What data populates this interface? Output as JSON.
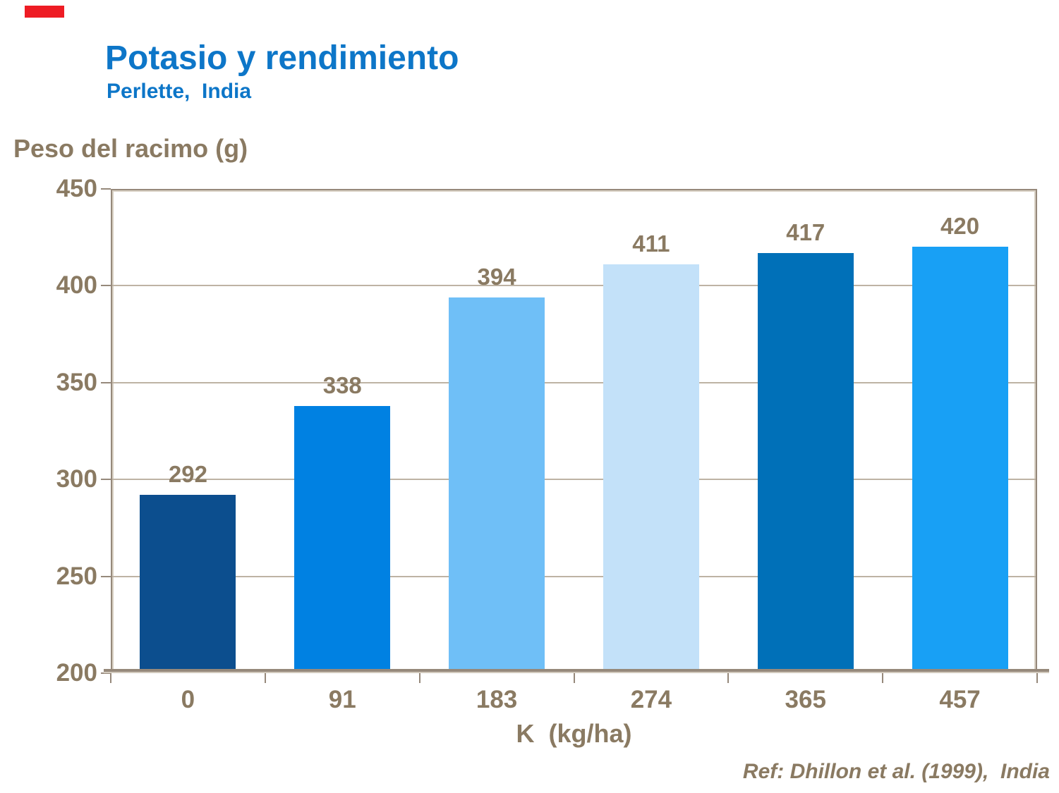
{
  "slide": {
    "title": "Potasio y rendimiento",
    "subtitle": "Perlette,  India",
    "reference": "Ref: Dhillon et al. (1999),  India"
  },
  "chart_data": {
    "type": "bar",
    "title": "Potasio y rendimiento",
    "subtitle": "Perlette, India",
    "categories": [
      "0",
      "91",
      "183",
      "274",
      "365",
      "457"
    ],
    "values": [
      292,
      338,
      394,
      411,
      417,
      420
    ],
    "bar_colors": [
      "#0c4e8e",
      "#0081e2",
      "#6fbff7",
      "#c3e1f9",
      "#0070b8",
      "#18a0f5"
    ],
    "xlabel": "K  (kg/ha)",
    "ylabel": "Peso del racimo (g)",
    "ylim": [
      200,
      450
    ],
    "yticks": [
      200,
      250,
      300,
      350,
      400,
      450
    ],
    "grid": true,
    "legend_position": "none"
  },
  "colors": {
    "title_blue": "#0d76c8",
    "text_taupe": "#8a7a62",
    "axis_frame": "#96897b",
    "gridline": "#beb3a4",
    "brand_mark_red": "#ee1c24",
    "background": "#ffffff"
  }
}
